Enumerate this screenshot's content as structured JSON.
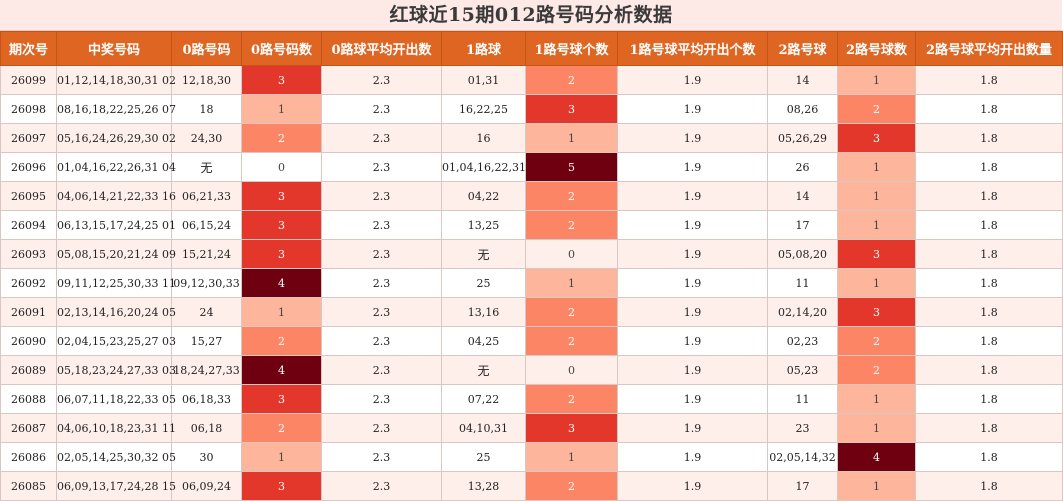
{
  "title": "红球近15期012路号码分析数据",
  "columns": [
    "期次号",
    "中奖号码",
    "0路号码",
    "0路号码数",
    "0路球平均开出数",
    "1路球",
    "1路号球个数",
    "1路号球平均开出个数",
    "2路号球",
    "2路号球数",
    "2路号球平均开出数量"
  ],
  "colors": {
    "header": "#de6522",
    "title_bg": "#fde9e5",
    "row_alt": "#ffefeb"
  },
  "chart_data": {
    "type": "table",
    "title": "红球近15期012路号码分析数据",
    "columns": [
      "期次号",
      "中奖号码",
      "0路号码",
      "0路号码数",
      "0路球平均开出数",
      "1路球",
      "1路号球个数",
      "1路号球平均开出个数",
      "2路号球",
      "2路号球数",
      "2路号球平均开出数量"
    ],
    "rows": [
      {
        "issue": "26099",
        "numbers": "01,12,14,18,30,31 02",
        "r0": "12,18,30",
        "r0_count": "3",
        "r0_avg": "2.3",
        "r1": "01,31",
        "r1_count": "2",
        "r1_avg": "1.9",
        "r2": "14",
        "r2_count": "1",
        "r2_avg": "1.8"
      },
      {
        "issue": "26098",
        "numbers": "08,16,18,22,25,26 07",
        "r0": "18",
        "r0_count": "1",
        "r0_avg": "2.3",
        "r1": "16,22,25",
        "r1_count": "3",
        "r1_avg": "1.9",
        "r2": "08,26",
        "r2_count": "2",
        "r2_avg": "1.8"
      },
      {
        "issue": "26097",
        "numbers": "05,16,24,26,29,30 02",
        "r0": "24,30",
        "r0_count": "2",
        "r0_avg": "2.3",
        "r1": "16",
        "r1_count": "1",
        "r1_avg": "1.9",
        "r2": "05,26,29",
        "r2_count": "3",
        "r2_avg": "1.8"
      },
      {
        "issue": "26096",
        "numbers": "01,04,16,22,26,31 04",
        "r0": "无",
        "r0_count": "0",
        "r0_avg": "2.3",
        "r1": "01,04,16,22,31",
        "r1_count": "5",
        "r1_avg": "1.9",
        "r2": "26",
        "r2_count": "1",
        "r2_avg": "1.8"
      },
      {
        "issue": "26095",
        "numbers": "04,06,14,21,22,33 16",
        "r0": "06,21,33",
        "r0_count": "3",
        "r0_avg": "2.3",
        "r1": "04,22",
        "r1_count": "2",
        "r1_avg": "1.9",
        "r2": "14",
        "r2_count": "1",
        "r2_avg": "1.8"
      },
      {
        "issue": "26094",
        "numbers": "06,13,15,17,24,25 01",
        "r0": "06,15,24",
        "r0_count": "3",
        "r0_avg": "2.3",
        "r1": "13,25",
        "r1_count": "2",
        "r1_avg": "1.9",
        "r2": "17",
        "r2_count": "1",
        "r2_avg": "1.8"
      },
      {
        "issue": "26093",
        "numbers": "05,08,15,20,21,24 09",
        "r0": "15,21,24",
        "r0_count": "3",
        "r0_avg": "2.3",
        "r1": "无",
        "r1_count": "0",
        "r1_avg": "1.9",
        "r2": "05,08,20",
        "r2_count": "3",
        "r2_avg": "1.8"
      },
      {
        "issue": "26092",
        "numbers": "09,11,12,25,30,33 11",
        "r0": "09,12,30,33",
        "r0_count": "4",
        "r0_avg": "2.3",
        "r1": "25",
        "r1_count": "1",
        "r1_avg": "1.9",
        "r2": "11",
        "r2_count": "1",
        "r2_avg": "1.8"
      },
      {
        "issue": "26091",
        "numbers": "02,13,14,16,20,24 05",
        "r0": "24",
        "r0_count": "1",
        "r0_avg": "2.3",
        "r1": "13,16",
        "r1_count": "2",
        "r1_avg": "1.9",
        "r2": "02,14,20",
        "r2_count": "3",
        "r2_avg": "1.8"
      },
      {
        "issue": "26090",
        "numbers": "02,04,15,23,25,27 03",
        "r0": "15,27",
        "r0_count": "2",
        "r0_avg": "2.3",
        "r1": "04,25",
        "r1_count": "2",
        "r1_avg": "1.9",
        "r2": "02,23",
        "r2_count": "2",
        "r2_avg": "1.8"
      },
      {
        "issue": "26089",
        "numbers": "05,18,23,24,27,33 03",
        "r0": "18,24,27,33",
        "r0_count": "4",
        "r0_avg": "2.3",
        "r1": "无",
        "r1_count": "0",
        "r1_avg": "1.9",
        "r2": "05,23",
        "r2_count": "2",
        "r2_avg": "1.8"
      },
      {
        "issue": "26088",
        "numbers": "06,07,11,18,22,33 05",
        "r0": "06,18,33",
        "r0_count": "3",
        "r0_avg": "2.3",
        "r1": "07,22",
        "r1_count": "2",
        "r1_avg": "1.9",
        "r2": "11",
        "r2_count": "1",
        "r2_avg": "1.8"
      },
      {
        "issue": "26087",
        "numbers": "04,06,10,18,23,31 11",
        "r0": "06,18",
        "r0_count": "2",
        "r0_avg": "2.3",
        "r1": "04,10,31",
        "r1_count": "3",
        "r1_avg": "1.9",
        "r2": "23",
        "r2_count": "1",
        "r2_avg": "1.8"
      },
      {
        "issue": "26086",
        "numbers": "02,05,14,25,30,32 05",
        "r0": "30",
        "r0_count": "1",
        "r0_avg": "2.3",
        "r1": "25",
        "r1_count": "1",
        "r1_avg": "1.9",
        "r2": "02,05,14,32",
        "r2_count": "4",
        "r2_avg": "1.8"
      },
      {
        "issue": "26085",
        "numbers": "06,09,13,17,24,28 15",
        "r0": "06,09,24",
        "r0_count": "3",
        "r0_avg": "2.3",
        "r1": "13,28",
        "r1_count": "2",
        "r1_avg": "1.9",
        "r2": "17",
        "r2_count": "1",
        "r2_avg": "1.8"
      }
    ]
  }
}
